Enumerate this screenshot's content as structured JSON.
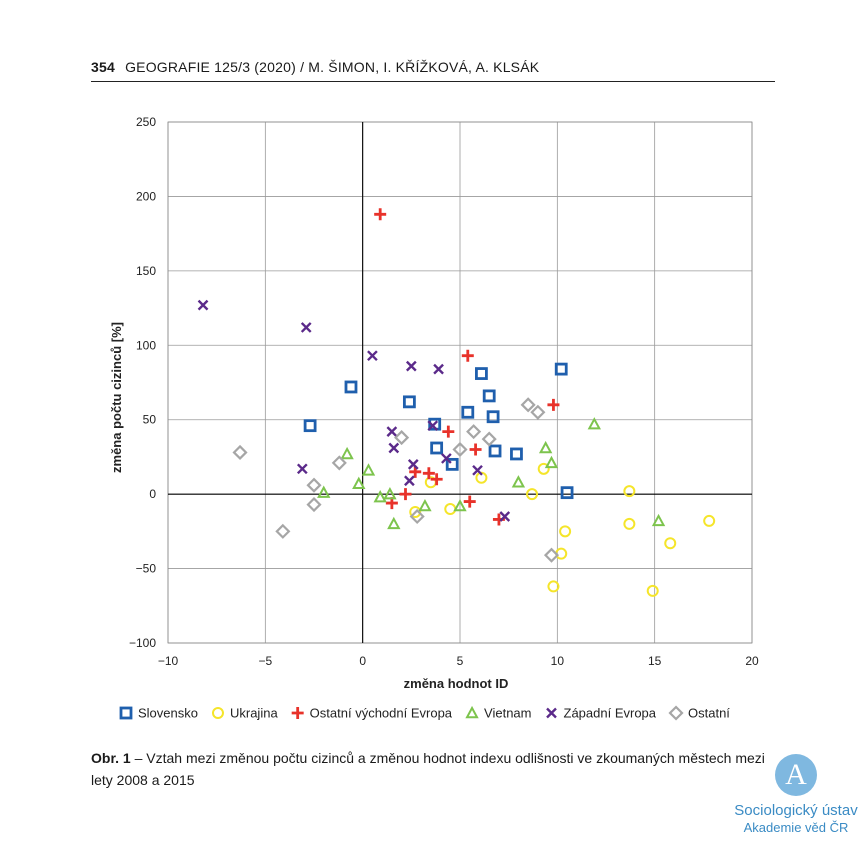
{
  "header": {
    "page_number": "354",
    "journal": "GEOGRAFIE 125/3 (2020)",
    "separator": "/",
    "authors": "M. ŠIMON, I. KŘÍŽKOVÁ, A. KLSÁK"
  },
  "caption": {
    "label": "Obr. 1",
    "text": " – Vztah mezi změnou počtu cizinců a změnou hodnot indexu odlišnosti ve zkoumaných městech mezi lety 2008 a 2015"
  },
  "logo": {
    "glyph": "A",
    "line1": "Sociologický ústav",
    "line2": "Akademie věd ČR"
  },
  "chart_data": {
    "type": "scatter",
    "xlabel": "změna hodnot ID",
    "ylabel": "změna počtu cizinců [%]",
    "xlim": [
      -10,
      20
    ],
    "ylim": [
      -100,
      250
    ],
    "xticks": [
      -10,
      -5,
      0,
      5,
      10,
      15,
      20
    ],
    "yticks": [
      -100,
      -50,
      0,
      50,
      100,
      150,
      200,
      250
    ],
    "grid": true,
    "legend_position": "bottom",
    "series": [
      {
        "name": "Slovensko",
        "marker": "square",
        "color": "#1f5fad",
        "points": [
          [
            -0.6,
            72
          ],
          [
            -2.7,
            46
          ],
          [
            2.4,
            62
          ],
          [
            3.7,
            47
          ],
          [
            3.8,
            31
          ],
          [
            4.6,
            20
          ],
          [
            5.4,
            55
          ],
          [
            6.1,
            81
          ],
          [
            6.5,
            66
          ],
          [
            6.7,
            52
          ],
          [
            6.8,
            29
          ],
          [
            7.9,
            27
          ],
          [
            10.2,
            84
          ],
          [
            10.5,
            1
          ]
        ]
      },
      {
        "name": "Ukrajina",
        "marker": "circle",
        "color": "#f5e52a",
        "points": [
          [
            2.7,
            -12
          ],
          [
            3.5,
            8
          ],
          [
            4.5,
            -10
          ],
          [
            6.1,
            11
          ],
          [
            8.7,
            0
          ],
          [
            9.3,
            17
          ],
          [
            9.8,
            -62
          ],
          [
            10.2,
            -40
          ],
          [
            10.4,
            -25
          ],
          [
            13.7,
            2
          ],
          [
            13.7,
            -20
          ],
          [
            14.9,
            -65
          ],
          [
            15.8,
            -33
          ],
          [
            17.8,
            -18
          ]
        ]
      },
      {
        "name": "Ostatní východní Evropa",
        "marker": "plus",
        "color": "#e8322a",
        "points": [
          [
            0.9,
            188
          ],
          [
            1.5,
            -6
          ],
          [
            2.2,
            0
          ],
          [
            2.7,
            15
          ],
          [
            3.4,
            14
          ],
          [
            3.8,
            10
          ],
          [
            4.4,
            42
          ],
          [
            5.4,
            93
          ],
          [
            5.5,
            -5
          ],
          [
            5.8,
            30
          ],
          [
            7.0,
            -17
          ],
          [
            9.8,
            60
          ]
        ]
      },
      {
        "name": "Vietnam",
        "marker": "triangle",
        "color": "#7dc44d",
        "points": [
          [
            -2.0,
            1
          ],
          [
            -0.8,
            27
          ],
          [
            -0.2,
            7
          ],
          [
            0.3,
            16
          ],
          [
            0.9,
            -2
          ],
          [
            1.4,
            0
          ],
          [
            1.6,
            -20
          ],
          [
            3.2,
            -8
          ],
          [
            5.0,
            -8
          ],
          [
            8.0,
            8
          ],
          [
            9.4,
            31
          ],
          [
            9.7,
            21
          ],
          [
            11.9,
            47
          ],
          [
            15.2,
            -18
          ]
        ]
      },
      {
        "name": "Západní Evropa",
        "marker": "x",
        "color": "#5b2a8a",
        "points": [
          [
            -8.2,
            127
          ],
          [
            -2.9,
            112
          ],
          [
            -3.1,
            17
          ],
          [
            0.5,
            93
          ],
          [
            1.5,
            42
          ],
          [
            1.6,
            31
          ],
          [
            2.4,
            9
          ],
          [
            2.5,
            86
          ],
          [
            2.6,
            20
          ],
          [
            3.6,
            46
          ],
          [
            3.9,
            84
          ],
          [
            4.3,
            24
          ],
          [
            5.9,
            16
          ],
          [
            7.3,
            -15
          ]
        ]
      },
      {
        "name": "Ostatní",
        "marker": "diamond",
        "color": "#a6a6a6",
        "points": [
          [
            -6.3,
            28
          ],
          [
            -4.1,
            -25
          ],
          [
            -2.5,
            6
          ],
          [
            -2.5,
            -7
          ],
          [
            -1.2,
            21
          ],
          [
            2.0,
            38
          ],
          [
            2.8,
            -15
          ],
          [
            5.0,
            30
          ],
          [
            5.7,
            42
          ],
          [
            6.5,
            37
          ],
          [
            8.5,
            60
          ],
          [
            9.0,
            55
          ],
          [
            9.7,
            -41
          ]
        ]
      }
    ]
  }
}
